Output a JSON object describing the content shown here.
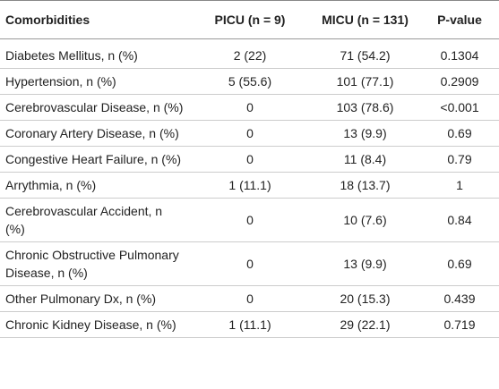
{
  "table": {
    "header": [
      "Comorbidities",
      "PICU (n = 9)",
      "MICU (n = 131)",
      "P-value"
    ],
    "rows": [
      [
        "Diabetes Mellitus, n (%)",
        "2 (22)",
        "71 (54.2)",
        "0.1304"
      ],
      [
        "Hypertension, n (%)",
        "5 (55.6)",
        "101 (77.1)",
        "0.2909"
      ],
      [
        "Cerebrovascular Disease, n (%)",
        "0",
        "103 (78.6)",
        "<0.001"
      ],
      [
        "Coronary Artery Disease, n (%)",
        "0",
        "13 (9.9)",
        "0.69"
      ],
      [
        "Congestive Heart Failure, n (%)",
        "0",
        "11 (8.4)",
        "0.79"
      ],
      [
        "Arrythmia, n (%)",
        "1 (11.1)",
        "18 (13.7)",
        "1"
      ],
      [
        "Cerebrovascular Accident, n (%)",
        "0",
        "10 (7.6)",
        "0.84"
      ],
      [
        "Chronic Obstructive Pulmonary Disease, n (%)",
        "0",
        "13 (9.9)",
        "0.69"
      ],
      [
        "Other Pulmonary Dx, n (%)",
        "0",
        "20 (15.3)",
        "0.439"
      ],
      [
        "Chronic Kidney Disease, n (%)",
        "1 (11.1)",
        "29 (22.1)",
        "0.719"
      ]
    ]
  }
}
